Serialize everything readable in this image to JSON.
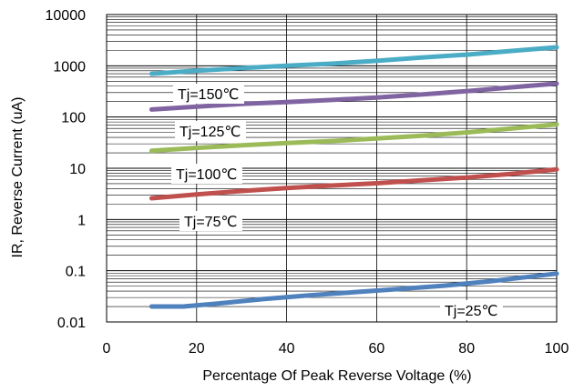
{
  "chart_data": {
    "type": "line",
    "xlabel": "Percentage Of Peak Reverse Voltage (%)",
    "ylabel": "IR, Reverse Current (uA)",
    "xlim": [
      0,
      100
    ],
    "ylim": [
      0.01,
      10000
    ],
    "yscale": "log",
    "x_ticks": [
      "0",
      "20",
      "40",
      "60",
      "80",
      "100"
    ],
    "y_ticks": [
      "0.01",
      "0.1",
      "1",
      "10",
      "100",
      "1000",
      "10000"
    ],
    "grid": "on (major and minor horizontal, major vertical)",
    "series": [
      {
        "name": "Tj=150℃",
        "color": "#4bacc6",
        "x": [
          10,
          20,
          30,
          40,
          50,
          60,
          70,
          80,
          90,
          100
        ],
        "y": [
          700,
          800,
          900,
          1000,
          1100,
          1250,
          1450,
          1650,
          1950,
          2300
        ]
      },
      {
        "name": "Tj=125℃",
        "color": "#8064a2",
        "x": [
          10,
          20,
          30,
          40,
          50,
          60,
          70,
          80,
          90,
          100
        ],
        "y": [
          140,
          160,
          180,
          195,
          215,
          240,
          275,
          320,
          380,
          450
        ]
      },
      {
        "name": "Tj=100℃",
        "color": "#9bbb59",
        "x": [
          10,
          20,
          30,
          40,
          50,
          60,
          70,
          80,
          90,
          100
        ],
        "y": [
          22,
          25,
          28,
          31,
          34,
          38,
          43,
          50,
          60,
          72
        ]
      },
      {
        "name": "Tj=75℃",
        "color": "#c0504d",
        "x": [
          10,
          20,
          30,
          40,
          50,
          60,
          70,
          80,
          90,
          100
        ],
        "y": [
          2.6,
          3.1,
          3.6,
          4.1,
          4.6,
          5.1,
          5.8,
          6.6,
          7.8,
          9.5
        ]
      },
      {
        "name": "Tj=25℃",
        "color": "#4f81bd",
        "x": [
          10,
          17,
          25,
          35,
          45,
          55,
          65,
          75,
          85,
          95,
          100
        ],
        "y": [
          0.02,
          0.02,
          0.023,
          0.028,
          0.033,
          0.038,
          0.044,
          0.051,
          0.062,
          0.078,
          0.088
        ]
      }
    ]
  }
}
